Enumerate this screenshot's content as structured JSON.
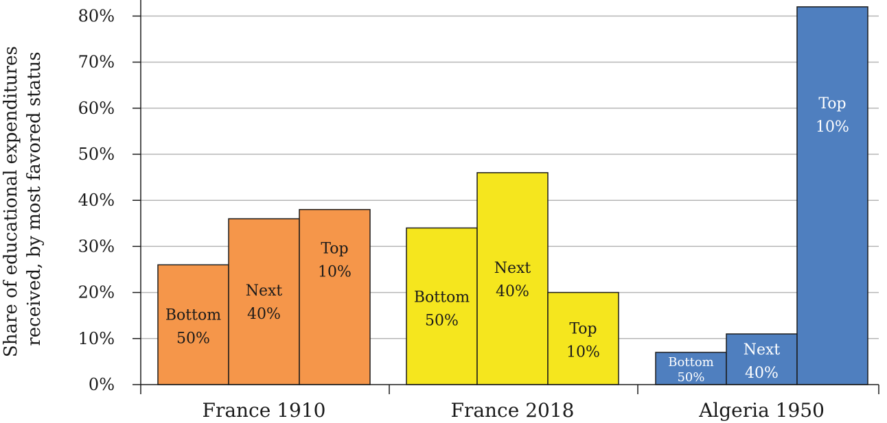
{
  "chart_data": {
    "type": "bar",
    "ylabel_line1": "Share of educational expenditures",
    "ylabel_line2": "received, by most favored status",
    "ylim": [
      0,
      80
    ],
    "yticks": [
      0,
      10,
      20,
      30,
      40,
      50,
      60,
      70,
      80
    ],
    "ytick_labels": [
      "0%",
      "10%",
      "20%",
      "30%",
      "40%",
      "50%",
      "60%",
      "70%",
      "80%"
    ],
    "grid": true,
    "groups": [
      {
        "label": "France 1910",
        "color": "#f5964a",
        "text_color": "#1a1a1a",
        "bars": [
          {
            "label_line1": "Bottom",
            "label_line2": "50%",
            "value": 26
          },
          {
            "label_line1": "Next",
            "label_line2": "40%",
            "value": 36
          },
          {
            "label_line1": "Top",
            "label_line2": "10%",
            "value": 38
          }
        ]
      },
      {
        "label": "France 2018",
        "color": "#f5e61e",
        "text_color": "#1a1a1a",
        "bars": [
          {
            "label_line1": "Bottom",
            "label_line2": "50%",
            "value": 34
          },
          {
            "label_line1": "Next",
            "label_line2": "40%",
            "value": 46
          },
          {
            "label_line1": "Top",
            "label_line2": "10%",
            "value": 20
          }
        ]
      },
      {
        "label": "Algeria 1950",
        "color": "#4f7fbf",
        "text_color": "#ffffff",
        "bars": [
          {
            "label_line1": "Bottom",
            "label_line2": "50%",
            "value": 7
          },
          {
            "label_line1": "Next",
            "label_line2": "40%",
            "value": 11
          },
          {
            "label_line1": "Top",
            "label_line2": "10%",
            "value": 82
          }
        ]
      }
    ]
  }
}
